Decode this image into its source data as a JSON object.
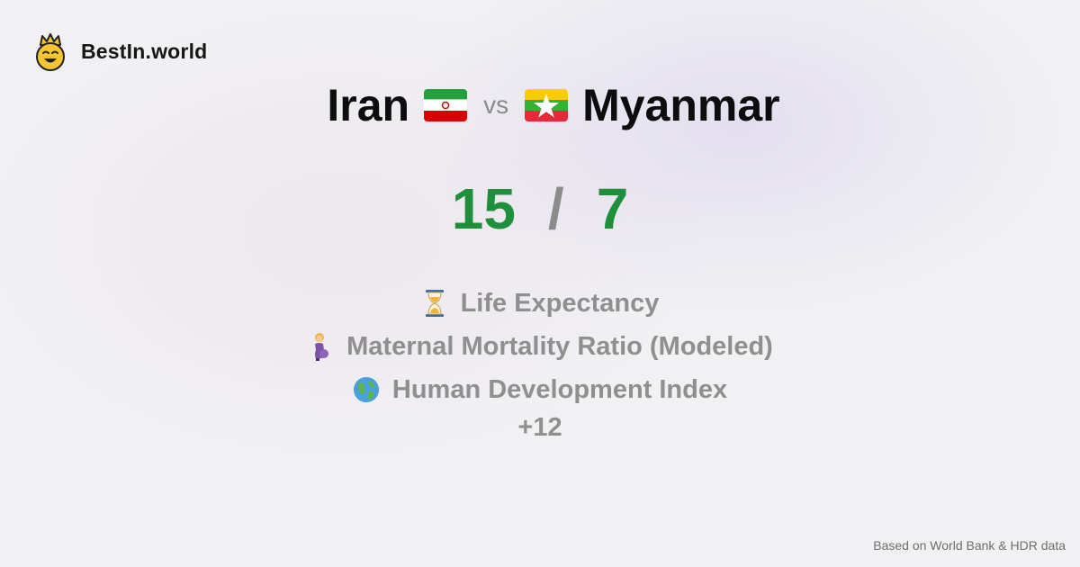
{
  "brand": {
    "name": "BestIn.world",
    "logo_icon": "crown-smiley-icon"
  },
  "comparison": {
    "left_country": "Iran",
    "left_flag_icon": "iran-flag-icon",
    "vs_label": "vs",
    "right_country": "Myanmar",
    "right_flag_icon": "myanmar-flag-icon"
  },
  "score": {
    "left": "15",
    "separator": "/",
    "right": "7",
    "color": "#1f8f3c"
  },
  "metrics": [
    {
      "icon": "hourglass-icon",
      "label": "Life Expectancy"
    },
    {
      "icon": "pregnant-woman-icon",
      "label": "Maternal Mortality Ratio (Modeled)"
    },
    {
      "icon": "globe-icon",
      "label": "Human Development Index"
    }
  ],
  "more_label": "+12",
  "source": "Based on World Bank & HDR data"
}
